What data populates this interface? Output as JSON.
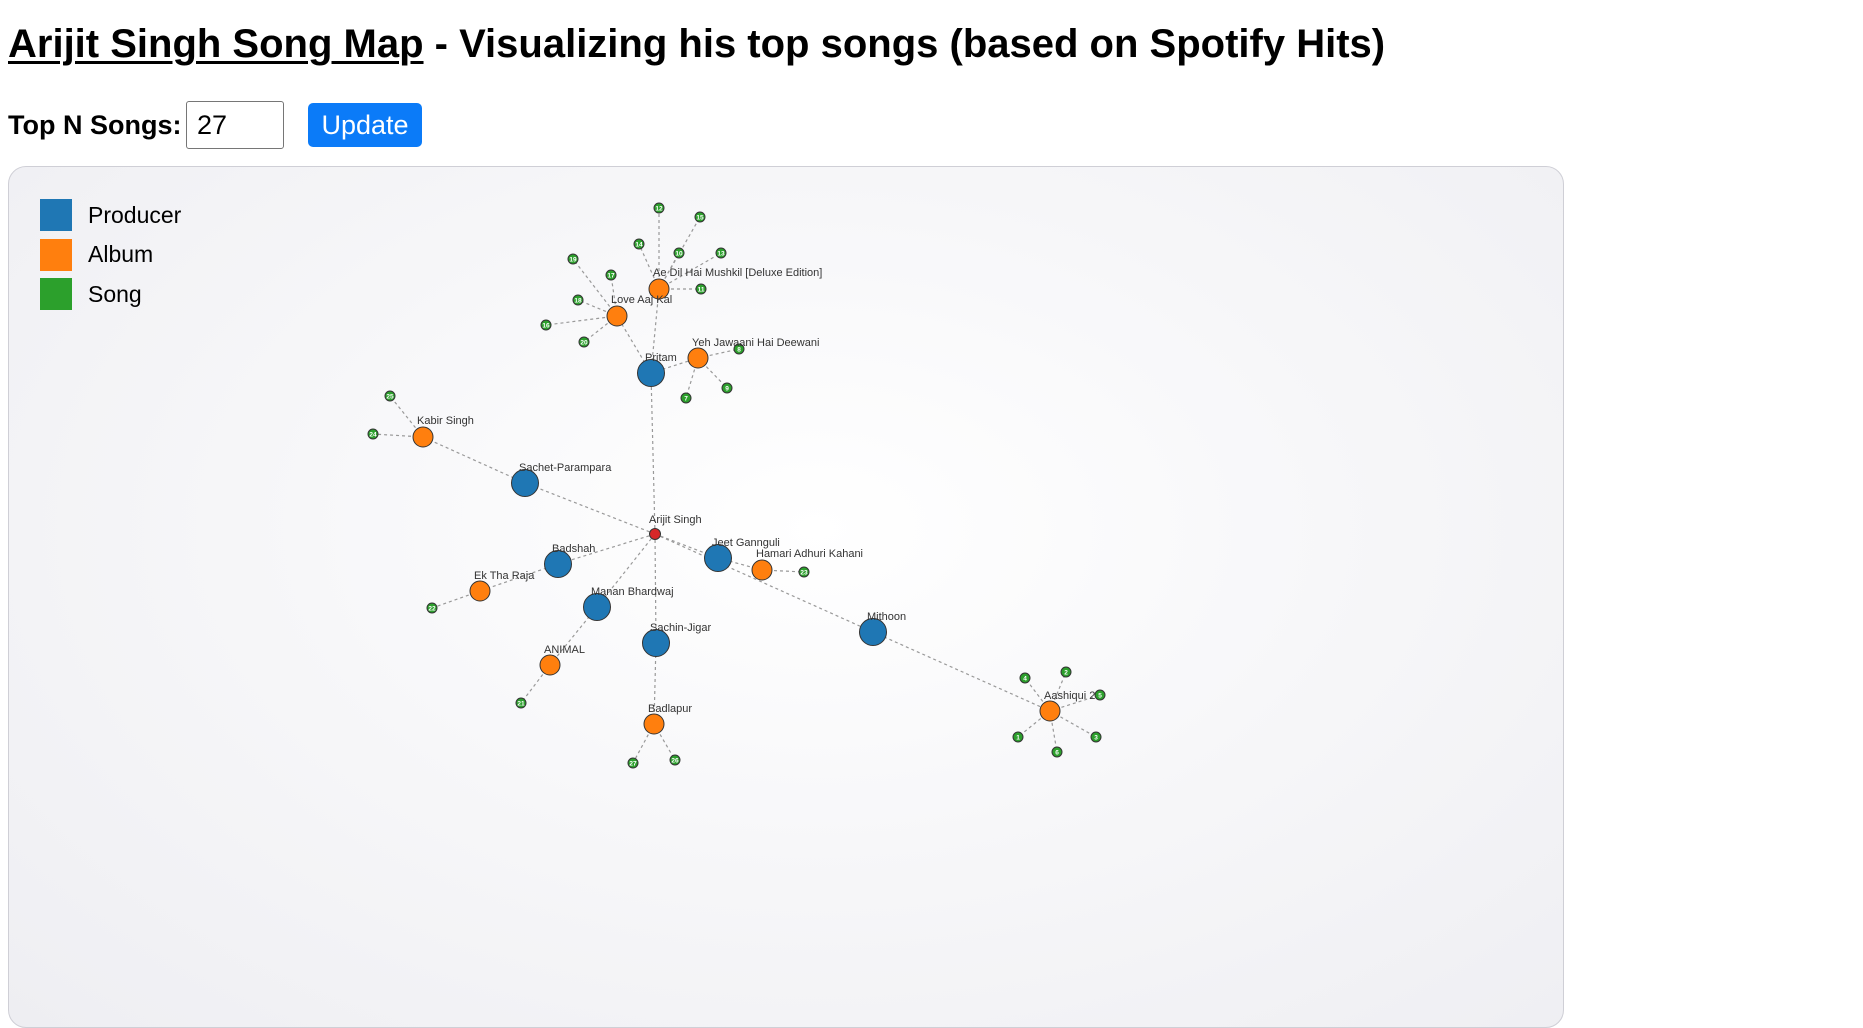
{
  "header": {
    "title_link": "Arijit Singh Song Map",
    "title_rest": " - Visualizing his top songs (based on Spotify Hits)"
  },
  "controls": {
    "label": "Top N Songs:",
    "input_value": "27",
    "update_label": "Update"
  },
  "colors": {
    "producer": "#1f77b4",
    "album": "#ff7f0e",
    "song": "#2ca02c",
    "root": "#d62728",
    "button": "#0b7bf8"
  },
  "legend": [
    {
      "label": "Producer",
      "color": "#1f77b4"
    },
    {
      "label": "Album",
      "color": "#ff7f0e"
    },
    {
      "label": "Song",
      "color": "#2ca02c"
    }
  ],
  "graph": {
    "root": {
      "id": "root",
      "label": "Arijit Singh"
    },
    "producers": [
      {
        "id": "pritam",
        "label": "Pritam"
      },
      {
        "id": "sachet",
        "label": "Sachet-Parampara"
      },
      {
        "id": "badshah",
        "label": "Badshah"
      },
      {
        "id": "manan",
        "label": "Manan Bhardwaj"
      },
      {
        "id": "sachin",
        "label": "Sachin-Jigar"
      },
      {
        "id": "jeet",
        "label": "Jeet Gannguli"
      },
      {
        "id": "mithoon",
        "label": "Mithoon"
      }
    ],
    "albums": [
      {
        "id": "adhm",
        "label": "Ae Dil Hai Mushkil [Deluxe Edition]",
        "producer": "pritam"
      },
      {
        "id": "lak",
        "label": "Love Aaj Kal",
        "producer": "pritam"
      },
      {
        "id": "yjhd",
        "label": "Yeh Jawaani Hai Deewani",
        "producer": "pritam"
      },
      {
        "id": "kabir",
        "label": "Kabir Singh",
        "producer": "sachet"
      },
      {
        "id": "ektha",
        "label": "Ek Tha Raja",
        "producer": "badshah"
      },
      {
        "id": "animal",
        "label": "ANIMAL",
        "producer": "manan"
      },
      {
        "id": "badlapur",
        "label": "Badlapur",
        "producer": "sachin"
      },
      {
        "id": "hak",
        "label": "Hamari Adhuri Kahani",
        "producer": "jeet"
      },
      {
        "id": "aashiqui",
        "label": "Aashiqui 2",
        "producer": "mithoon"
      }
    ],
    "songs": [
      {
        "label": "1",
        "album": "aashiqui"
      },
      {
        "label": "2",
        "album": "aashiqui"
      },
      {
        "label": "3",
        "album": "aashiqui"
      },
      {
        "label": "4",
        "album": "aashiqui"
      },
      {
        "label": "5",
        "album": "aashiqui"
      },
      {
        "label": "6",
        "album": "aashiqui"
      },
      {
        "label": "7",
        "album": "yjhd"
      },
      {
        "label": "8",
        "album": "yjhd"
      },
      {
        "label": "9",
        "album": "yjhd"
      },
      {
        "label": "10",
        "album": "adhm"
      },
      {
        "label": "11",
        "album": "adhm"
      },
      {
        "label": "12",
        "album": "adhm"
      },
      {
        "label": "13",
        "album": "adhm"
      },
      {
        "label": "14",
        "album": "adhm"
      },
      {
        "label": "15",
        "album": "adhm"
      },
      {
        "label": "16",
        "album": "lak"
      },
      {
        "label": "17",
        "album": "lak"
      },
      {
        "label": "18",
        "album": "lak"
      },
      {
        "label": "19",
        "album": "lak"
      },
      {
        "label": "20",
        "album": "lak"
      },
      {
        "label": "21",
        "album": "animal"
      },
      {
        "label": "22",
        "album": "ektha"
      },
      {
        "label": "23",
        "album": "hak"
      },
      {
        "label": "24",
        "album": "kabir"
      },
      {
        "label": "25",
        "album": "kabir"
      },
      {
        "label": "26",
        "album": "badlapur"
      },
      {
        "label": "27",
        "album": "badlapur"
      }
    ]
  }
}
